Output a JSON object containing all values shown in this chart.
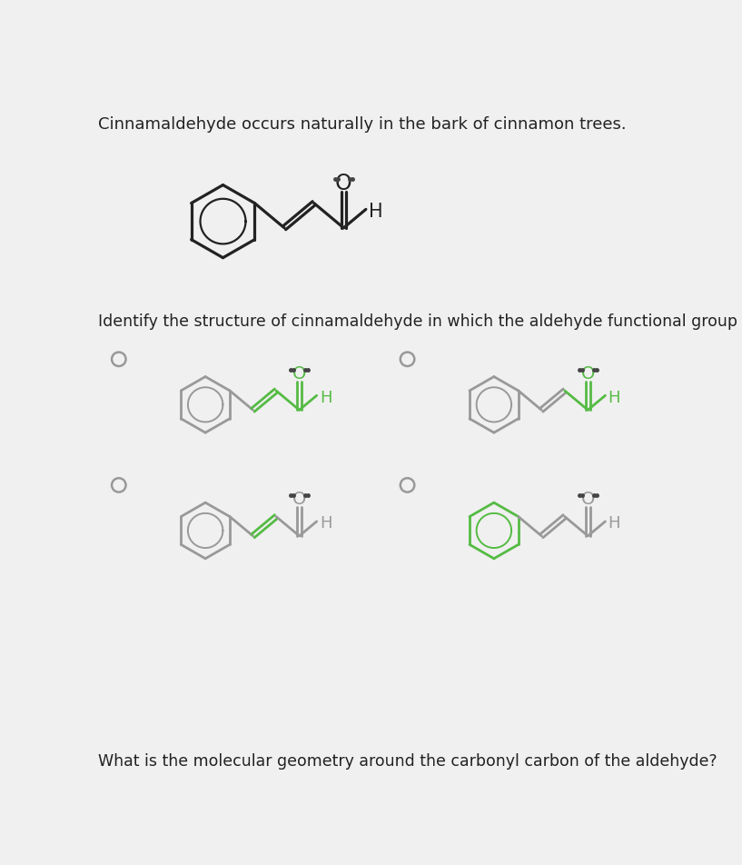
{
  "bg_color": "#f0f0f0",
  "title_text": "Cinnamaldehyde occurs naturally in the bark of cinnamon trees.",
  "question1_text": "Identify the structure of cinnamaldehyde in which the aldehyde functional group is highlighted.",
  "question2_text": "What is the molecular geometry around the carbonyl carbon of the aldehyde?",
  "title_fontsize": 13.0,
  "question_fontsize": 12.5,
  "black_color": "#222222",
  "green_color": "#55bb44",
  "gray_color": "#999999",
  "dot_color": "#444444",
  "radio_color": "#999999"
}
